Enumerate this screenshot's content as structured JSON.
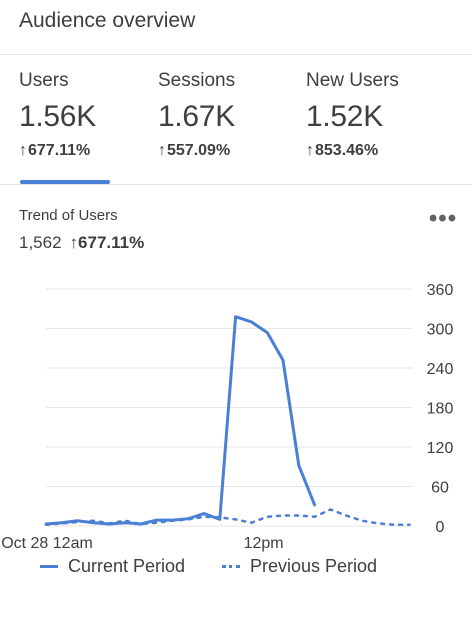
{
  "header": {
    "title": "Audience overview"
  },
  "metrics": [
    {
      "label": "Users",
      "value": "1.56K",
      "arrow": "↑",
      "change": "677.11%"
    },
    {
      "label": "Sessions",
      "value": "1.67K",
      "arrow": "↑",
      "change": "557.09%"
    },
    {
      "label": "New Users",
      "value": "1.52K",
      "arrow": "↑",
      "change": "853.46%"
    }
  ],
  "active_tab": "Users",
  "trend": {
    "title": "Trend of Users",
    "total": "1,562",
    "arrow": "↑",
    "change": "677.11%",
    "more_icon": "more-horizontal-icon",
    "more_glyph": "•••"
  },
  "colors": {
    "accent": "#4a7fd6",
    "text": "#3c4043",
    "grid": "#e6e6e6"
  },
  "chart_data": {
    "type": "line",
    "x_tick_labels": [
      "Oct 28 12am",
      "12pm"
    ],
    "y_ticks": [
      0,
      60,
      120,
      180,
      240,
      300,
      360
    ],
    "ylim": [
      0,
      360
    ],
    "y_axis_position": "right",
    "grid": true,
    "legend_position": "bottom",
    "series": [
      {
        "name": "Current Period",
        "style": "solid",
        "hours": [
          0,
          1,
          2,
          3,
          4,
          5,
          6,
          7,
          8,
          9,
          10,
          11,
          12,
          13,
          14,
          15,
          16,
          17
        ],
        "values": [
          3,
          5,
          8,
          5,
          3,
          5,
          3,
          9,
          9,
          11,
          19,
          10,
          318,
          310,
          294,
          252,
          92,
          32
        ]
      },
      {
        "name": "Previous Period",
        "style": "dotted",
        "hours": [
          0,
          1,
          2,
          3,
          4,
          5,
          6,
          7,
          8,
          9,
          10,
          11,
          12,
          13,
          14,
          15,
          16,
          17,
          18,
          19,
          20,
          21,
          22,
          23
        ],
        "values": [
          2,
          4,
          6,
          8,
          4,
          8,
          3,
          5,
          8,
          10,
          14,
          13,
          10,
          5,
          14,
          16,
          16,
          14,
          25,
          16,
          8,
          4,
          2,
          2
        ]
      }
    ]
  }
}
